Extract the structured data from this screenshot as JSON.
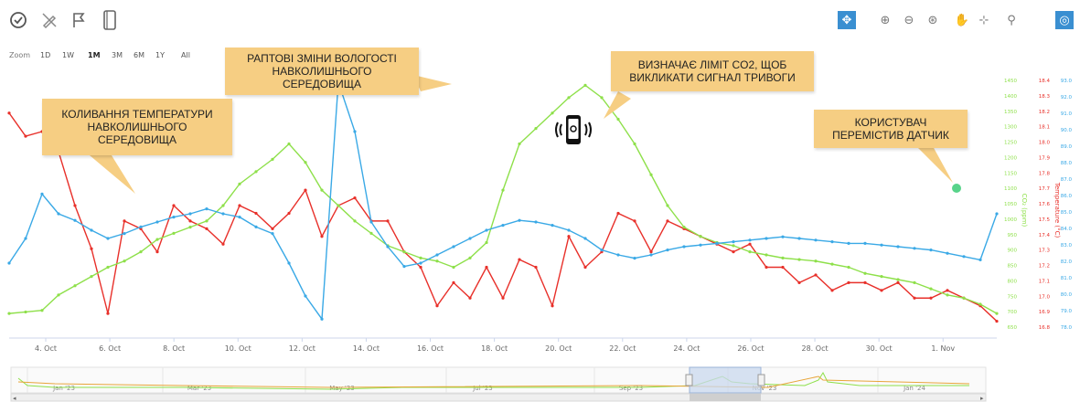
{
  "toolbar_left": [
    {
      "name": "circle-check-icon"
    },
    {
      "name": "pen-off-icon"
    },
    {
      "name": "flag-icon"
    },
    {
      "name": "notebook-icon"
    }
  ],
  "zoom": {
    "label": "Zoom",
    "options": [
      "1D",
      "1W",
      "1M",
      "3M",
      "6M",
      "1Y",
      "All"
    ],
    "active": "1M"
  },
  "toolbar_right": [
    {
      "name": "pan-arrows-icon",
      "active": true
    },
    {
      "name": "zoom-in-icon"
    },
    {
      "name": "zoom-out-icon"
    },
    {
      "name": "zoom-reset-icon"
    },
    {
      "name": "hand-icon"
    },
    {
      "name": "expand-icon"
    },
    {
      "name": "pin-icon"
    },
    {
      "name": "target-icon",
      "active": true
    }
  ],
  "annotations": {
    "temperature": "КОЛИВАННЯ ТЕМПЕРАТУРИ НАВКОЛИШНЬОГО СЕРЕДОВИЩА",
    "humidity": "РАПТОВІ ЗМІНИ ВОЛОГОСТІ НАВКОЛИШНЬОГО СЕРЕДОВИЩА",
    "co2": "ВИЗНАЧАЄ ЛІМІТ CO2, ЩОБ ВИКЛИКАТИ СИГНАЛ ТРИВОГИ",
    "sensor": "КОРИСТУВАЧ ПЕРЕМІСТИВ ДАТЧИК"
  },
  "colors": {
    "temperature": "#e8302a",
    "co2": "#8ee04a",
    "humidity": "#3aa9e6",
    "annotation_bg": "#f6ce83",
    "accent": "#3a8fd1"
  },
  "chart_data": {
    "type": "line",
    "x_ticks": [
      "4. Oct",
      "6. Oct",
      "8. Oct",
      "10. Oct",
      "12. Oct",
      "14. Oct",
      "16. Oct",
      "18. Oct",
      "20. Oct",
      "22. Oct",
      "24. Oct",
      "26. Oct",
      "28. Oct",
      "30. Oct",
      "1. Nov"
    ],
    "axes": {
      "co2": {
        "label": "CO₂ (ppm)",
        "ticks": [
          "650",
          "700",
          "750",
          "800",
          "850",
          "900",
          "950",
          "1000",
          "1050",
          "1100",
          "1150",
          "1200",
          "1250",
          "1300",
          "1350",
          "1400",
          "1450"
        ]
      },
      "temperature": {
        "label": "Temperature (°C)",
        "ticks": [
          "16.8",
          "16.9",
          "17.0",
          "17.1",
          "17.2",
          "17.3",
          "17.4",
          "17.5",
          "17.6",
          "17.7",
          "17.8",
          "17.9",
          "18.0",
          "18.1",
          "18.2",
          "18.3",
          "18.4"
        ]
      },
      "humidity": {
        "label": "",
        "ticks": [
          "78.0",
          "79.0",
          "80.0",
          "81.0",
          "82.0",
          "83.0",
          "84.0",
          "85.0",
          "86.0",
          "87.0",
          "88.0",
          "89.0",
          "90.0",
          "91.0",
          "92.0",
          "93.0"
        ]
      }
    },
    "series": [
      {
        "key": "temperature",
        "values": [
          18.2,
          18.05,
          18.08,
          17.95,
          17.6,
          17.32,
          16.9,
          17.5,
          17.45,
          17.3,
          17.6,
          17.5,
          17.45,
          17.35,
          17.6,
          17.55,
          17.45,
          17.55,
          17.7,
          17.4,
          17.6,
          17.65,
          17.5,
          17.5,
          17.3,
          17.2,
          16.95,
          17.1,
          17.0,
          17.2,
          17.0,
          17.25,
          17.2,
          16.95,
          17.4,
          17.2,
          17.3,
          17.55,
          17.5,
          17.3,
          17.5,
          17.45,
          17.4,
          17.35,
          17.3,
          17.35,
          17.2,
          17.2,
          17.1,
          17.15,
          17.05,
          17.1,
          17.1,
          17.05,
          17.1,
          17.0,
          17.0,
          17.05,
          17.0,
          16.95,
          16.85
        ]
      },
      {
        "key": "co2",
        "values": [
          700,
          705,
          710,
          760,
          790,
          820,
          850,
          870,
          900,
          940,
          960,
          980,
          1000,
          1050,
          1120,
          1160,
          1200,
          1250,
          1190,
          1100,
          1050,
          1000,
          960,
          920,
          900,
          880,
          870,
          850,
          880,
          930,
          1100,
          1250,
          1300,
          1350,
          1400,
          1440,
          1400,
          1330,
          1250,
          1150,
          1050,
          980,
          950,
          930,
          920,
          900,
          890,
          880,
          875,
          870,
          860,
          850,
          830,
          820,
          810,
          800,
          780,
          760,
          750,
          730,
          700
        ]
      },
      {
        "key": "humidity",
        "values": [
          82.0,
          83.5,
          86.2,
          85.0,
          84.6,
          84.0,
          83.5,
          83.8,
          84.2,
          84.5,
          84.8,
          85.0,
          85.3,
          85.0,
          84.8,
          84.2,
          83.8,
          82.0,
          80.0,
          78.6,
          93.0,
          90.0,
          84.5,
          83.0,
          81.8,
          82.0,
          82.5,
          83.0,
          83.5,
          84.0,
          84.3,
          84.6,
          84.5,
          84.3,
          84.0,
          83.5,
          82.8,
          82.5,
          82.3,
          82.5,
          82.8,
          83.0,
          83.1,
          83.2,
          83.3,
          83.4,
          83.5,
          83.6,
          83.5,
          83.4,
          83.3,
          83.2,
          83.2,
          83.1,
          83.0,
          82.9,
          82.8,
          82.6,
          82.4,
          82.2,
          85.0
        ]
      }
    ],
    "marker": {
      "label": "sensor-moved-point",
      "index": 55
    },
    "navigator": {
      "labels": [
        "Jan '23",
        "Mar '23",
        "May '23",
        "Jul '23",
        "Sep '23",
        "Nov '23",
        "Jan '24"
      ]
    }
  }
}
